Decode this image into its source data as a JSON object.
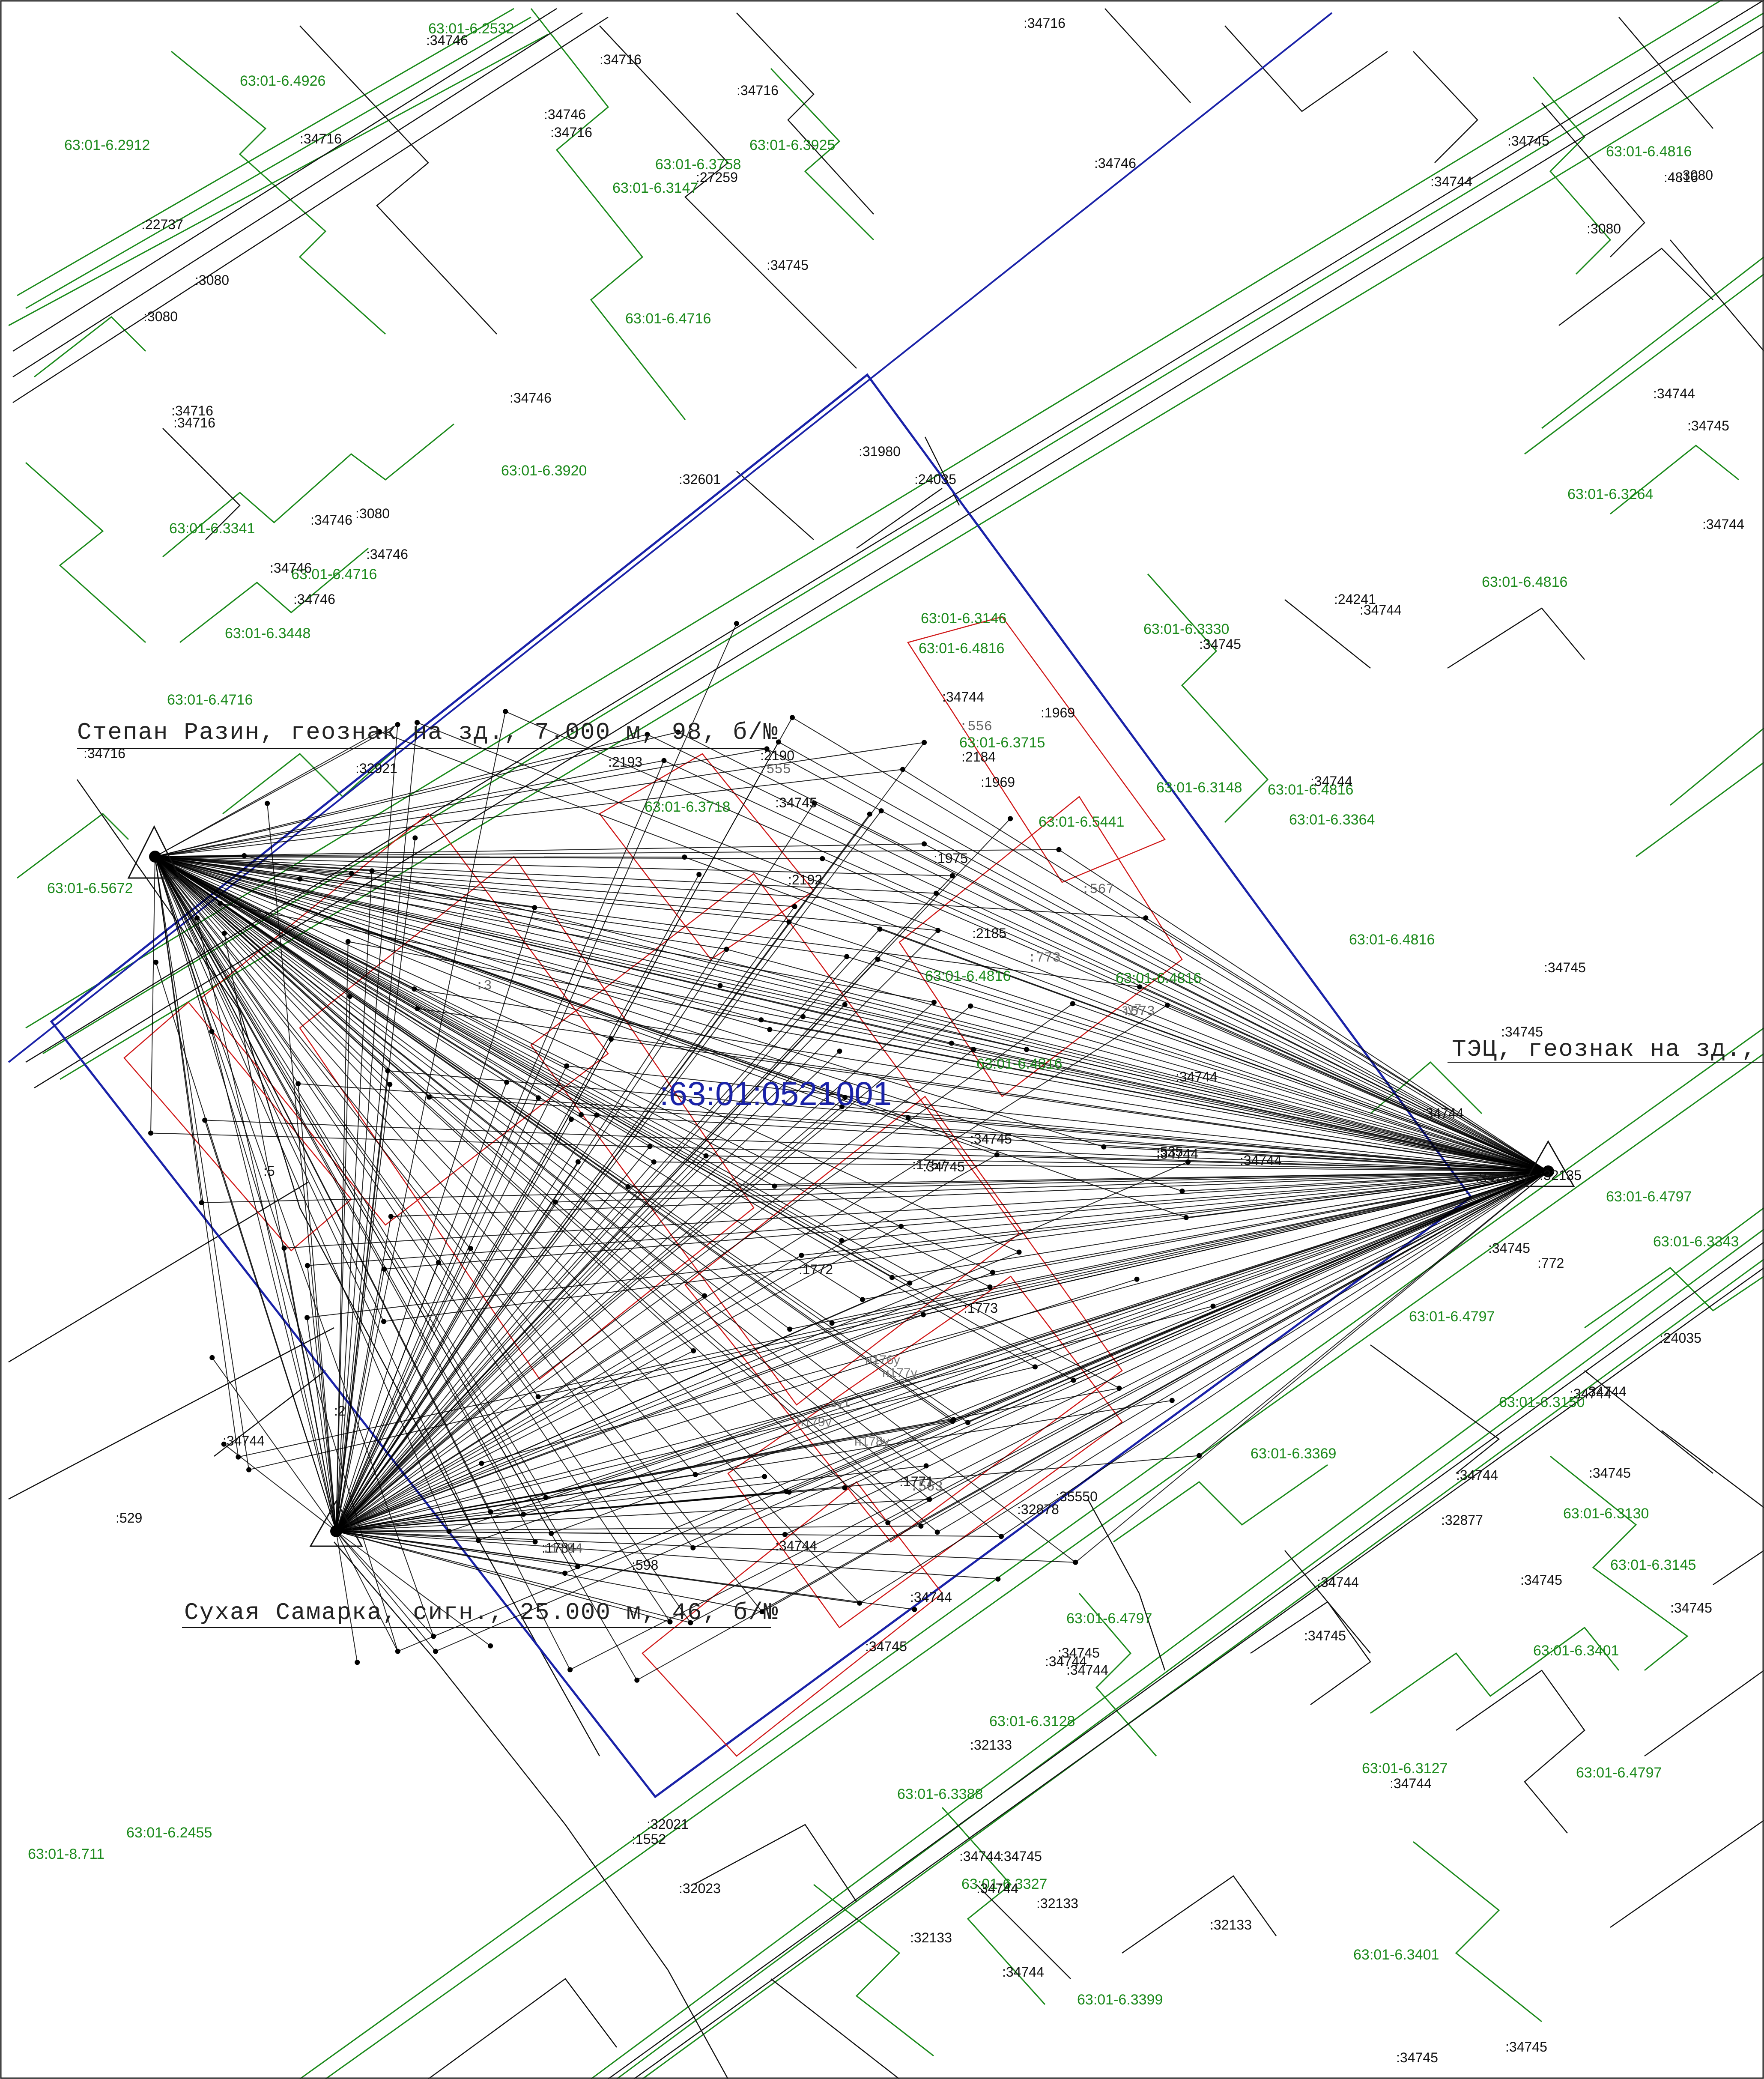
{
  "map": {
    "quarter_label": ":63:01:0521001",
    "colors": {
      "parcel_green": "#1b8a1b",
      "quarter_boundary_blue": "#1a22a8",
      "survey_red": "#d01818",
      "linework_black": "#111111"
    }
  },
  "stations": [
    {
      "name": "Степан Разин, геознак на зд., 7.000 м, 98, б/№"
    },
    {
      "name": "ТЭЦ, геознак на зд., "
    },
    {
      "name": "Сухая Самарка, сигн., 25.000 м, 46, б/№"
    }
  ],
  "green_labels": [
    "63:01-6.2532",
    "63:01-6.4926",
    "63:01-6.2912",
    "63:01-6.3925",
    "63:01-6.3758",
    "63:01-6.3147",
    "63:01-6.4716",
    "63:01-6.3920",
    "63:01-6.3341",
    "63:01-6.4716",
    "63:01-6.3448",
    "63:01-6.4716",
    "63:01-6.5672",
    "63:01-6.3146",
    "63:01-6.4816",
    "63:01-6.3330",
    "63:01-6.3715",
    "63:01-6.3718",
    "63:01-6.5441",
    "63:01-6.3148",
    "63:01-6.4816",
    "63:01-6.3364",
    "63:01-6.4816",
    "63:01-6.4816",
    "63:01-6.4816",
    "63:01-6.3264",
    "63:01-6.4816",
    "63:01-6.4816",
    "63:01-6.4797",
    "63:01-6.3343",
    "63:01-6.4797",
    "63:01-6.3150",
    "63:01-6.3369",
    "63:01-6.3130",
    "63:01-6.3145",
    "63:01-6.4797",
    "63:01-6.3401",
    "63:01-6.3128",
    "63:01-6.3127",
    "63:01-6.4797",
    "63:01-6.3388",
    "63:01-6.2455",
    "63:01-8.711",
    "63:01-6.3401",
    "63:01-6.3399",
    "63:01-6.3327",
    "63:01-6.4816"
  ],
  "black_labels": [
    ":34716",
    ":34746",
    ":34716",
    ":34716",
    ":34716",
    ":34746",
    ":34716",
    ":27259",
    ":34746",
    ":34744",
    ":34745",
    ":4816",
    ":3080",
    ":3080",
    ":22737",
    ":3080",
    ":3080",
    ":34745",
    ":34716",
    ":34716",
    ":34746",
    ":34744",
    ":34745",
    ":34744",
    ":31980",
    ":24035",
    ":32601",
    ":3080",
    ":34746",
    ":34746",
    ":34746",
    ":34746",
    ":24241",
    ":34744",
    ":34745",
    ":34744",
    ":1969",
    ":2184",
    ":1969",
    ":2190",
    ":2193",
    ":32921",
    ":34716",
    ":34745",
    ":34744",
    ":2192",
    ":1975",
    ":2185",
    ":34745",
    ":34745",
    ":34744",
    ":34744",
    ":34745",
    ":34745",
    ":34744",
    ":1757",
    ":34744",
    ":535",
    ":772",
    ":34745",
    ":32135",
    ":24035",
    ":34744",
    ":34744",
    ":32877",
    ":1773",
    ":34744",
    ":34745",
    ":1771",
    ":34745",
    ":35550",
    ":32878",
    ":34744",
    ":34744",
    ":529",
    ":598",
    ":34744",
    ":34745",
    ":34744",
    ":34745",
    ":34745",
    ":34745",
    ":32133",
    ":34744",
    ":34744",
    ":32021",
    ":1552",
    ":32023",
    ":34745",
    ":34744",
    ":32133",
    ":32133",
    ":32133",
    ":34744",
    ":34744",
    ":34744",
    ":34745",
    ":34745",
    ":2",
    ":5",
    ":1772",
    ":1784",
    ":34744"
  ],
  "gray_labels": [
    ":555",
    ":556",
    ":567",
    ":773",
    ":563",
    ":573",
    ":3",
    ":1784"
  ],
  "red_labels": [
    "н176у",
    "н177у",
    "н178у",
    "н179у",
    "зу1",
    "зу7"
  ]
}
